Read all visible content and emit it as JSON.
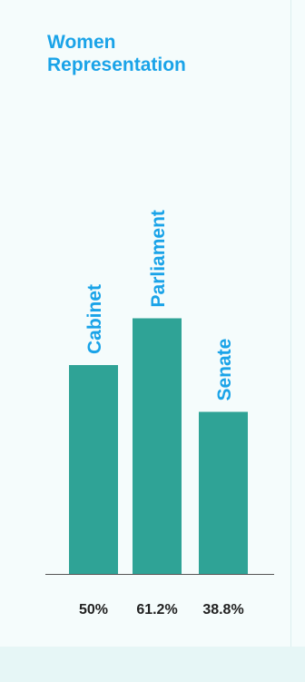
{
  "chart_data": {
    "type": "bar",
    "title": "Women\nRepresentation",
    "categories": [
      "Cabinet",
      "Parliament",
      "Senate"
    ],
    "values": [
      50,
      61.2,
      38.8
    ],
    "value_labels": [
      "50%",
      "61.2%",
      "38.8%"
    ],
    "ylim": [
      0,
      100
    ],
    "grid": false,
    "legend": "none",
    "bar_color": "#2fa396",
    "label_color": "#1aa3e8",
    "axis_color": "#555555"
  }
}
